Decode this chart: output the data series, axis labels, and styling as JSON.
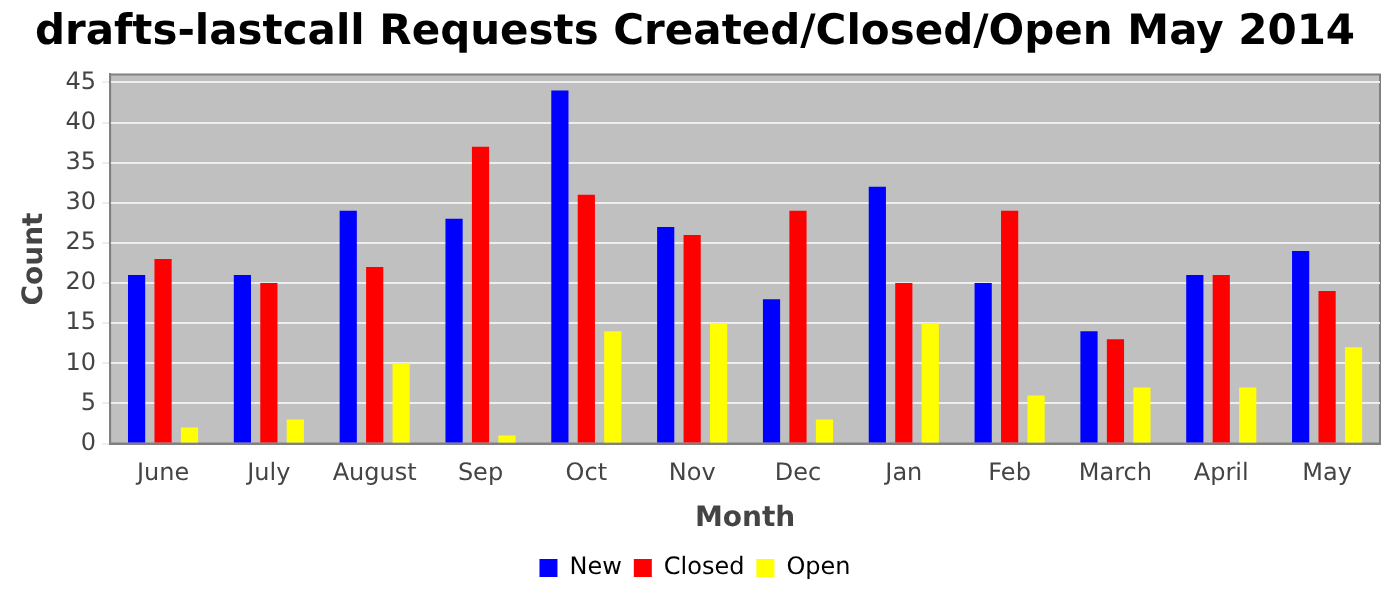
{
  "chart_data": {
    "type": "bar",
    "title": "drafts-lastcall Requests Created/Closed/Open May 2014",
    "xlabel": "Month",
    "ylabel": "Count",
    "categories": [
      "June",
      "July",
      "August",
      "Sep",
      "Oct",
      "Nov",
      "Dec",
      "Jan",
      "Feb",
      "March",
      "April",
      "May"
    ],
    "series": [
      {
        "name": "New",
        "color": "#0000ff",
        "values": [
          21,
          21,
          29,
          28,
          44,
          27,
          18,
          32,
          20,
          14,
          21,
          24
        ]
      },
      {
        "name": "Closed",
        "color": "#ff0000",
        "values": [
          23,
          20,
          22,
          37,
          31,
          26,
          29,
          20,
          29,
          13,
          21,
          19
        ]
      },
      {
        "name": "Open",
        "color": "#ffff00",
        "values": [
          2,
          3,
          10,
          1,
          14,
          15,
          3,
          15,
          6,
          7,
          7,
          12
        ]
      }
    ],
    "ylim": [
      0,
      46
    ],
    "yticks": [
      0,
      5,
      10,
      15,
      20,
      25,
      30,
      35,
      40,
      45
    ],
    "grid": "y",
    "legend": "bottom"
  }
}
